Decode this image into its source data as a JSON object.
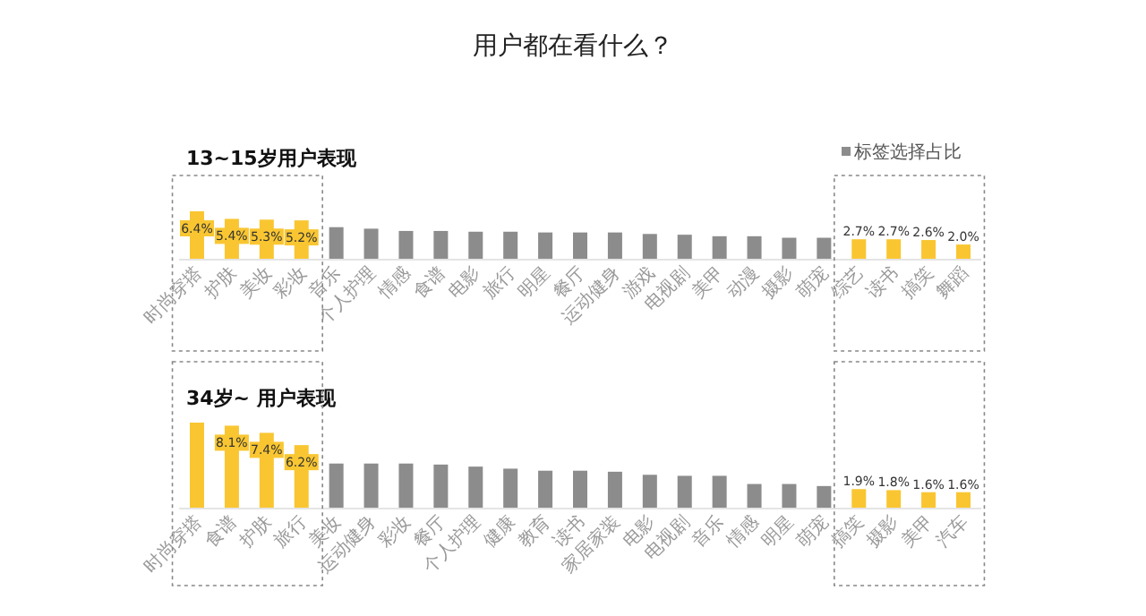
{
  "chart_data": [
    {
      "type": "bar",
      "title": "用户都在看什么？",
      "subtitle": "13~15岁用户表现",
      "legend": "top right",
      "categories": [
        "时尚穿搭",
        "护肤",
        "美妆",
        "彩妆",
        "音乐",
        "个人护理",
        "情感",
        "食谱",
        "电影",
        "旅行",
        "明星",
        "餐厅",
        "运动健身",
        "游戏",
        "电视剧",
        "美甲",
        "动漫",
        "摄影",
        "萌宠",
        "综艺",
        "读书",
        "搞笑",
        "舞蹈"
      ],
      "series": [
        {
          "name": "标签选择占比",
          "color": "#8c8c8c",
          "colors": [
            "#f9c632",
            "#f9c632",
            "#f9c632",
            "#f9c632",
            "#8c8c8c",
            "#8c8c8c",
            "#8c8c8c",
            "#8c8c8c",
            "#8c8c8c",
            "#8c8c8c",
            "#8c8c8c",
            "#8c8c8c",
            "#8c8c8c",
            "#8c8c8c",
            "#8c8c8c",
            "#8c8c8c",
            "#8c8c8c",
            "#8c8c8c",
            "#8c8c8c",
            "#f9c632",
            "#f9c632",
            "#f9c632",
            "#f9c632"
          ],
          "values": [
            6.4,
            5.4,
            5.3,
            5.2,
            4.3,
            4.1,
            3.8,
            3.8,
            3.7,
            3.7,
            3.6,
            3.6,
            3.6,
            3.4,
            3.3,
            3.1,
            3.1,
            2.9,
            2.9,
            2.7,
            2.7,
            2.6,
            2.0
          ],
          "value_labels": [
            "6.4%",
            "5.4%",
            "5.3%",
            "5.2%",
            null,
            null,
            null,
            null,
            null,
            null,
            null,
            null,
            null,
            null,
            null,
            null,
            null,
            null,
            null,
            "2.7%",
            "2.7%",
            "2.6%",
            "2.0%"
          ]
        }
      ]
    },
    {
      "type": "bar",
      "subtitle": "34岁~ 用户表现",
      "categories": [
        "时尚穿搭",
        "食谱",
        "护肤",
        "旅行",
        "美妆",
        "运动健身",
        "彩妆",
        "餐厅",
        "个人护理",
        "健康",
        "教育",
        "读书",
        "家居家装",
        "电影",
        "电视剧",
        "音乐",
        "情感",
        "明星",
        "萌宠",
        "搞笑",
        "摄影",
        "美甲",
        "汽车"
      ],
      "series": [
        {
          "colors": [
            "#f9c632",
            "#f9c632",
            "#f9c632",
            "#f9c632",
            "#8c8c8c",
            "#8c8c8c",
            "#8c8c8c",
            "#8c8c8c",
            "#8c8c8c",
            "#8c8c8c",
            "#8c8c8c",
            "#8c8c8c",
            "#8c8c8c",
            "#8c8c8c",
            "#8c8c8c",
            "#8c8c8c",
            "#8c8c8c",
            "#8c8c8c",
            "#8c8c8c",
            "#f9c632",
            "#f9c632",
            "#f9c632",
            "#f9c632"
          ],
          "values": [
            8.4,
            8.1,
            7.4,
            6.2,
            4.4,
            4.4,
            4.4,
            4.3,
            4.1,
            3.9,
            3.7,
            3.7,
            3.6,
            3.3,
            3.2,
            3.2,
            2.4,
            2.4,
            2.2,
            1.9,
            1.8,
            1.6,
            1.6
          ],
          "value_labels": [
            null,
            "8.1%",
            "7.4%",
            "6.2%",
            null,
            null,
            null,
            null,
            null,
            null,
            null,
            null,
            null,
            null,
            null,
            null,
            null,
            null,
            null,
            "1.9%",
            "1.8%",
            "1.6%",
            "1.6%"
          ]
        }
      ]
    }
  ]
}
